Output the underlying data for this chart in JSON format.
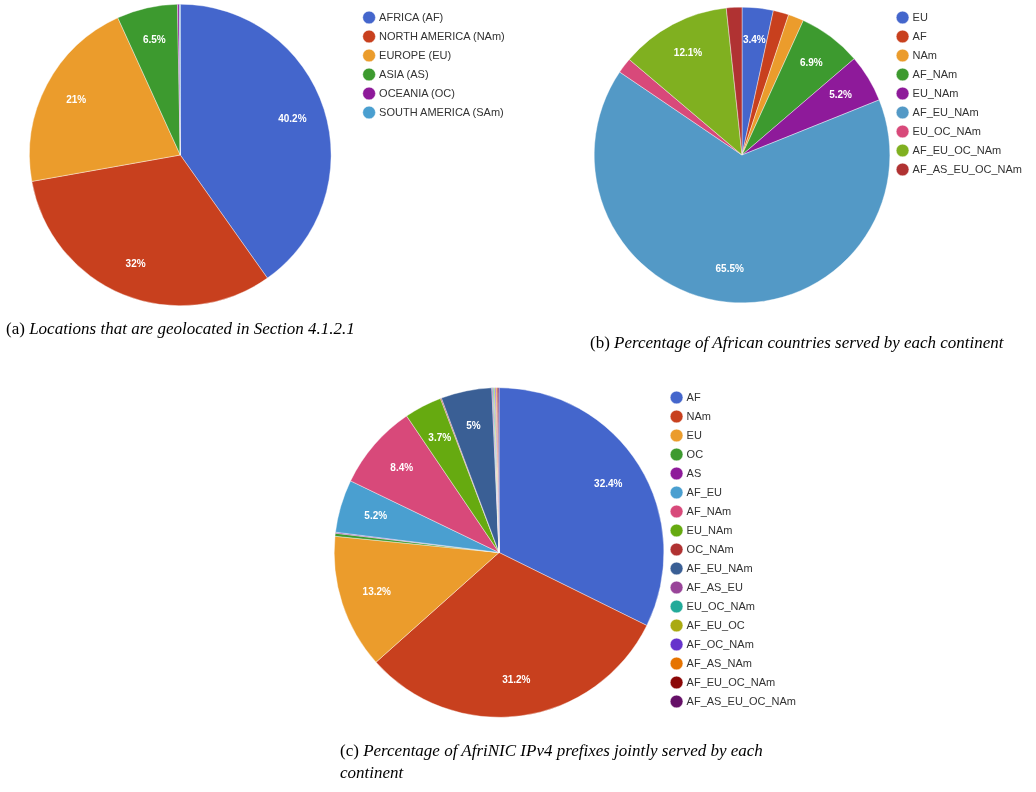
{
  "chart_data": [
    {
      "type": "pie",
      "title": "(a) Locations that are geolocated in Section 4.1.2.1",
      "categories": [
        "AFRICA (AF)",
        "NORTH AMERICA (NAm)",
        "EUROPE (EU)",
        "ASIA (AS)",
        "OCEANIA (OC)",
        "SOUTH AMERICA (SAm)"
      ],
      "values": [
        40.2,
        32,
        21,
        6.5,
        0.2,
        0.1
      ],
      "value_labels": [
        "40.2%",
        "32%",
        "21%",
        "6.5%",
        null,
        null
      ],
      "colors": [
        "#4466cc",
        "#c8401e",
        "#eb9c2c",
        "#3d9a2f",
        "#8e1a9a",
        "#4a9fd0"
      ],
      "legend": "top right"
    },
    {
      "type": "pie",
      "title": "(b) Percentage of African countries served by each continent",
      "categories": [
        "EU",
        "AF",
        "NAm",
        "AF_NAm",
        "EU_NAm",
        "AF_EU_NAm",
        "EU_OC_NAm",
        "AF_EU_OC_NAm",
        "AF_AS_EU_OC_NAm"
      ],
      "values": [
        3.4,
        1.7,
        1.7,
        6.9,
        5.2,
        65.5,
        1.7,
        12.1,
        1.7
      ],
      "value_labels": [
        "3.4%",
        null,
        null,
        "6.9%",
        "5.2%",
        "65.5%",
        null,
        "12.1%",
        null
      ],
      "colors": [
        "#4466cc",
        "#c8401e",
        "#eb9c2c",
        "#3d9a2f",
        "#8e1a9a",
        "#5399c6",
        "#d8497a",
        "#80b020",
        "#b03232"
      ],
      "legend": "top right"
    },
    {
      "type": "pie",
      "title": "(c) Percentage of AfriNIC IPv4 prefixes jointly served by each continent",
      "categories": [
        "AF",
        "NAm",
        "EU",
        "OC",
        "AS",
        "AF_EU",
        "AF_NAm",
        "EU_NAm",
        "OC_NAm",
        "AF_EU_NAm",
        "AF_AS_EU",
        "EU_OC_NAm",
        "AF_EU_OC",
        "AF_OC_NAm",
        "AF_AS_NAm",
        "AF_EU_OC_NAm",
        "AF_AS_EU_OC_NAm"
      ],
      "values": [
        32.4,
        31.2,
        13.2,
        0.3,
        0.1,
        5.2,
        8.4,
        3.7,
        0.1,
        5,
        0.1,
        0.1,
        0.1,
        0.1,
        0.1,
        0.1,
        0.1
      ],
      "value_labels": [
        "32.4%",
        "31.2%",
        "13.2%",
        null,
        null,
        "5.2%",
        "8.4%",
        "3.7%",
        null,
        "5%",
        null,
        null,
        null,
        null,
        null,
        null,
        null
      ],
      "colors": [
        "#4466cc",
        "#c8401e",
        "#eb9c2c",
        "#3d9a2f",
        "#8e1a9a",
        "#4a9fd0",
        "#d8497a",
        "#66aa10",
        "#b03232",
        "#3a5f95",
        "#994499",
        "#22aa99",
        "#aaaa11",
        "#6633cc",
        "#e67300",
        "#8b0707",
        "#651067"
      ],
      "legend": "top right"
    }
  ]
}
